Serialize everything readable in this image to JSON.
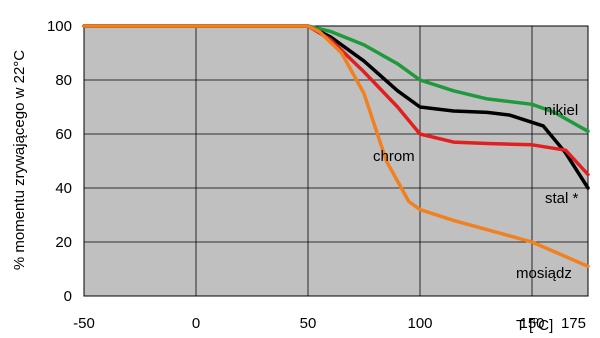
{
  "chart_data": {
    "type": "line",
    "ylabel": "% momentu zrywającego w 22°C",
    "xlabel_prefix": "T [",
    "xlabel_sup": "o",
    "xlabel_suffix": "C]",
    "xlim": [
      -50,
      175
    ],
    "ylim": [
      0,
      100
    ],
    "x_ticks": [
      -50,
      0,
      50,
      100,
      150,
      175
    ],
    "y_ticks": [
      0,
      20,
      40,
      60,
      80,
      100
    ],
    "x_gridlines": [
      0,
      50,
      100,
      150
    ],
    "y_gridlines": [
      20,
      40,
      60,
      80
    ],
    "grid": true,
    "plot_background": "#c0c0c0",
    "series": [
      {
        "name": "nikiel",
        "color": "#1e9a3c",
        "points": [
          [
            -50,
            100
          ],
          [
            50,
            100
          ],
          [
            60,
            98
          ],
          [
            75,
            93
          ],
          [
            90,
            86
          ],
          [
            100,
            80
          ],
          [
            115,
            76
          ],
          [
            130,
            73
          ],
          [
            150,
            71
          ],
          [
            160,
            68
          ],
          [
            175,
            61
          ]
        ]
      },
      {
        "name": "stal *",
        "color": "#000000",
        "points": [
          [
            -50,
            100
          ],
          [
            50,
            100
          ],
          [
            60,
            96
          ],
          [
            75,
            87
          ],
          [
            90,
            76
          ],
          [
            100,
            70
          ],
          [
            115,
            68.5
          ],
          [
            130,
            68
          ],
          [
            140,
            67
          ],
          [
            155,
            63
          ],
          [
            165,
            53
          ],
          [
            175,
            40
          ]
        ]
      },
      {
        "name": "chrom",
        "color": "#e02020",
        "points": [
          [
            -50,
            100
          ],
          [
            50,
            100
          ],
          [
            60,
            95
          ],
          [
            75,
            83
          ],
          [
            90,
            70
          ],
          [
            100,
            60
          ],
          [
            115,
            57
          ],
          [
            130,
            56.5
          ],
          [
            150,
            56
          ],
          [
            165,
            54
          ],
          [
            175,
            45
          ]
        ]
      },
      {
        "name": "mosiądz",
        "color": "#f08020",
        "points": [
          [
            -50,
            100
          ],
          [
            50,
            100
          ],
          [
            55,
            98
          ],
          [
            65,
            90
          ],
          [
            75,
            75
          ],
          [
            85,
            50
          ],
          [
            95,
            35
          ],
          [
            100,
            32
          ],
          [
            115,
            28
          ],
          [
            150,
            20
          ],
          [
            175,
            11
          ]
        ]
      }
    ]
  }
}
